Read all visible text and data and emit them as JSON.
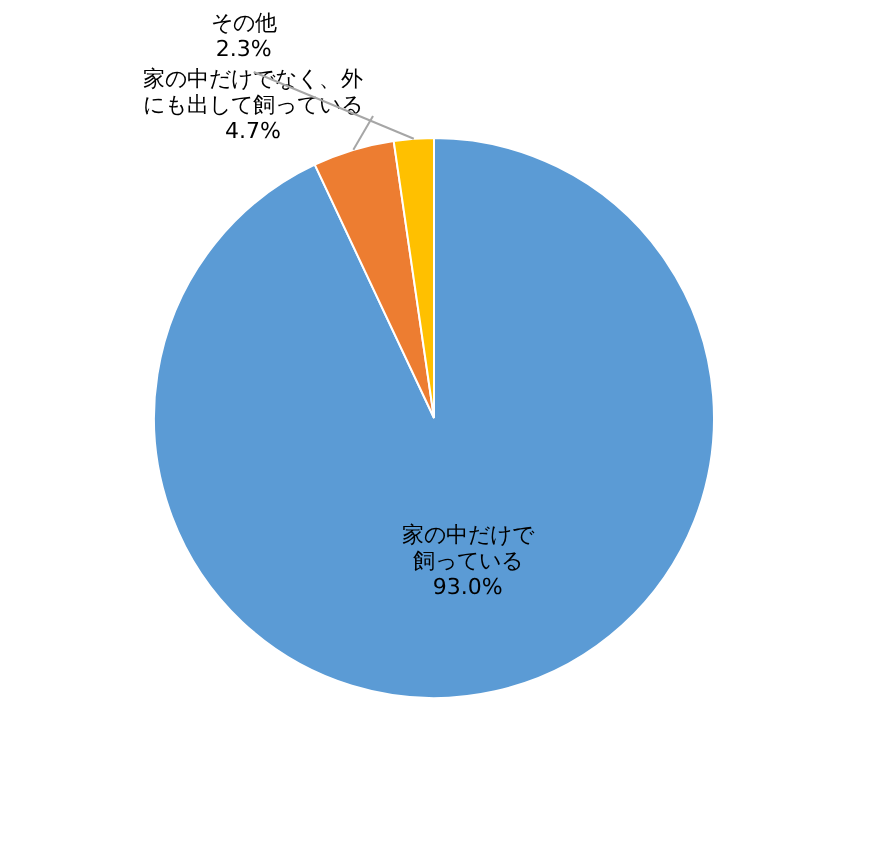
{
  "chart_data": {
    "type": "pie",
    "categories": [
      "家の中だけで飼っている",
      "家の中だけでなく、外にも出して飼っている",
      "その他"
    ],
    "values": [
      93.0,
      4.7,
      2.3
    ],
    "colors": [
      "#5b9bd5",
      "#ed7d31",
      "#ffc000"
    ],
    "value_labels": [
      "93.0%",
      "4.7%",
      "2.3%"
    ]
  }
}
